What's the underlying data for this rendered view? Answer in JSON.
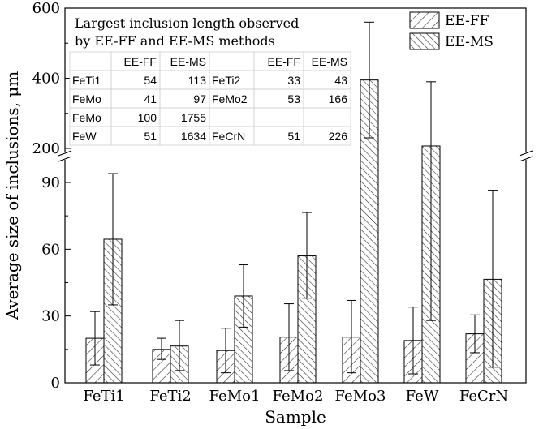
{
  "chart_data": {
    "type": "bar",
    "xlabel": "Sample",
    "ylabel": "Average size of inclusions, μm",
    "categories": [
      "FeTi1",
      "FeTi2",
      "FeMo1",
      "FeMo2",
      "FeMo3",
      "FeW",
      "FeCrN"
    ],
    "series": [
      {
        "name": "EE-FF",
        "values": [
          20,
          15,
          14.5,
          20.5,
          20.5,
          19,
          22
        ],
        "err_low": [
          8,
          10.5,
          4.5,
          5.5,
          4.5,
          4,
          13.5
        ],
        "err_high": [
          32,
          20,
          24.5,
          35.5,
          37,
          34,
          30.5
        ]
      },
      {
        "name": "EE-MS",
        "values": [
          64.5,
          16.5,
          39,
          57,
          395,
          207,
          46.5
        ],
        "err_low": [
          35,
          5.5,
          25,
          38,
          230,
          28,
          7
        ],
        "err_high": [
          94,
          28,
          53,
          76.5,
          560,
          390,
          86.5
        ]
      }
    ],
    "y_axis_break": {
      "lower_range": [
        0,
        100
      ],
      "upper_range": [
        170,
        600
      ]
    },
    "y_ticks_lower": [
      "0",
      "30",
      "60",
      "90"
    ],
    "y_ticks_upper": [
      "200",
      "400",
      "600"
    ],
    "legend_position": "top-right",
    "pattern": "diagonal-hatch",
    "inset_table": {
      "title_line1": "Largest inclusion length observed",
      "title_line2": "by EE-FF and EE-MS methods",
      "headers": [
        "",
        "EE-FF",
        "EE-MS",
        "",
        "EE-FF",
        "EE-MS"
      ],
      "rows": [
        [
          "FeTi1",
          "54",
          "113",
          "FeTi2",
          "33",
          "43"
        ],
        [
          "FeMo",
          "41",
          "97",
          "FeMo2",
          "53",
          "166"
        ],
        [
          "FeMo",
          "100",
          "1755",
          "",
          "",
          ""
        ],
        [
          "FeW",
          "51",
          "1634",
          "FeCrN",
          "51",
          "226"
        ]
      ]
    }
  }
}
